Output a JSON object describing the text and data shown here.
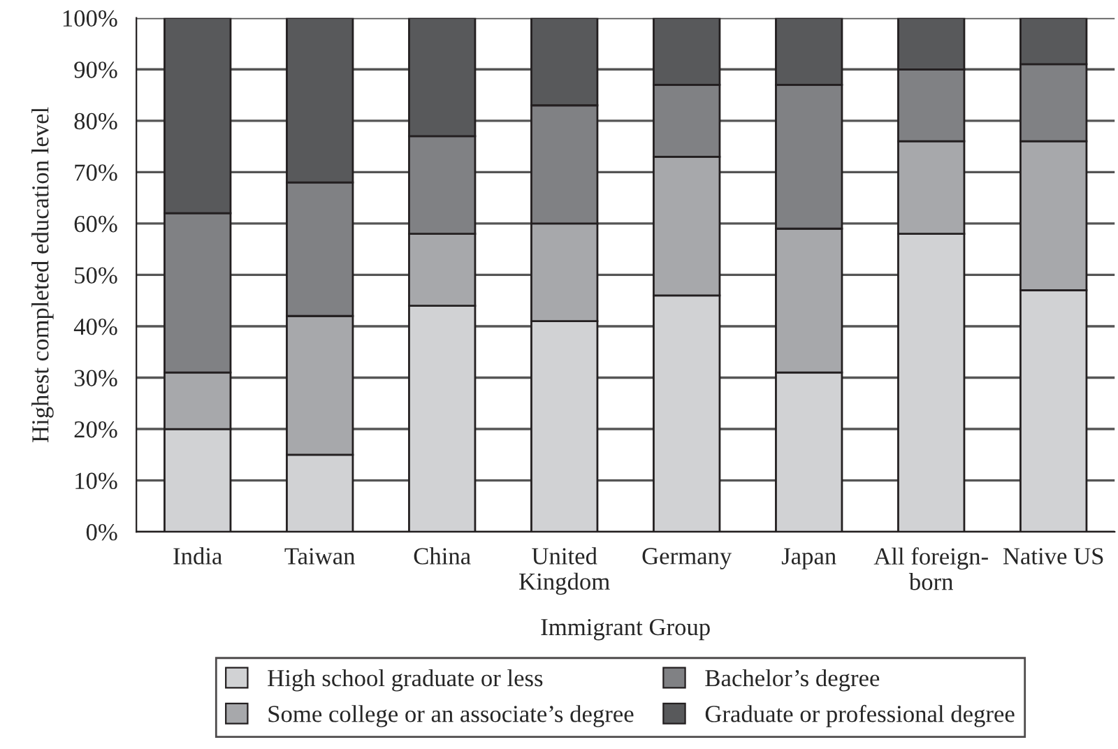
{
  "chart_data": {
    "type": "bar",
    "stacked": true,
    "xlabel": "Immigrant Group",
    "ylabel": "Highest completed education level",
    "categories": [
      "India",
      "Taiwan",
      "China",
      "United\nKingdom",
      "Germany",
      "Japan",
      "All foreign-\nborn",
      "Native US"
    ],
    "series": [
      {
        "name": "High school graduate or less",
        "color": "#d1d2d4",
        "values": [
          20,
          15,
          44,
          41,
          46,
          31,
          58,
          47
        ]
      },
      {
        "name": "Some college or an associate’s degree",
        "color": "#a7a8ab",
        "values": [
          11,
          27,
          14,
          19,
          27,
          28,
          18,
          29
        ]
      },
      {
        "name": "Bachelor’s degree",
        "color": "#808184",
        "values": [
          31,
          26,
          19,
          23,
          14,
          28,
          14,
          15
        ]
      },
      {
        "name": "Graduate or professional degree",
        "color": "#58595b",
        "values": [
          38,
          32,
          23,
          17,
          13,
          13,
          10,
          9
        ]
      }
    ],
    "ylim": [
      0,
      100
    ],
    "yticks": [
      {
        "value": 0,
        "label": "0%"
      },
      {
        "value": 10,
        "label": "10%"
      },
      {
        "value": 20,
        "label": "20%"
      },
      {
        "value": 30,
        "label": "30%"
      },
      {
        "value": 40,
        "label": "40%"
      },
      {
        "value": 50,
        "label": "50%"
      },
      {
        "value": 60,
        "label": "60%"
      },
      {
        "value": 70,
        "label": "70%"
      },
      {
        "value": 80,
        "label": "80%"
      },
      {
        "value": 90,
        "label": "90%"
      },
      {
        "value": 100,
        "label": "100%"
      }
    ],
    "grid": "y",
    "legend": "bottom"
  }
}
